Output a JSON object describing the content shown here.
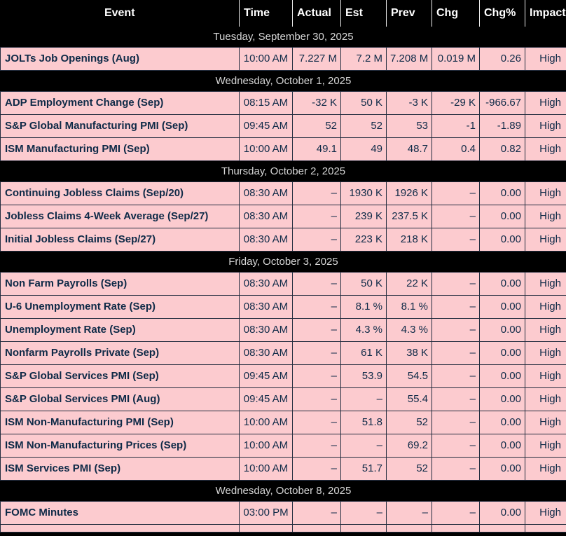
{
  "colors": {
    "header_background": "#000000",
    "header_text": "#ffffff",
    "header_divider": "#ededed",
    "date_row_background": "#000000",
    "date_row_text": "#d6d6d6",
    "row_background": "#fccbcf",
    "row_text": "#0e2a47",
    "row_border": "#232d3f"
  },
  "table": {
    "columns": [
      {
        "key": "event",
        "label": "Event"
      },
      {
        "key": "time",
        "label": "Time"
      },
      {
        "key": "actual",
        "label": "Actual"
      },
      {
        "key": "est",
        "label": "Est"
      },
      {
        "key": "prev",
        "label": "Prev"
      },
      {
        "key": "chg",
        "label": "Chg"
      },
      {
        "key": "chgpct",
        "label": "Chg%"
      },
      {
        "key": "impact",
        "label": "Impact"
      }
    ],
    "sections": [
      {
        "date": "Tuesday, September 30, 2025",
        "rows": [
          {
            "event": "JOLTs Job Openings (Aug)",
            "time": "10:00 AM",
            "actual": "7.227 M",
            "est": "7.2 M",
            "prev": "7.208 M",
            "chg": "0.019 M",
            "chgpct": "0.26",
            "impact": "High"
          }
        ]
      },
      {
        "date": "Wednesday, October 1, 2025",
        "rows": [
          {
            "event": "ADP Employment Change (Sep)",
            "time": "08:15 AM",
            "actual": "-32 K",
            "est": "50 K",
            "prev": "-3 K",
            "chg": "-29 K",
            "chgpct": "-966.67",
            "impact": "High"
          },
          {
            "event": "S&P Global Manufacturing PMI (Sep)",
            "time": "09:45 AM",
            "actual": "52",
            "est": "52",
            "prev": "53",
            "chg": "-1",
            "chgpct": "-1.89",
            "impact": "High"
          },
          {
            "event": "ISM Manufacturing PMI (Sep)",
            "time": "10:00 AM",
            "actual": "49.1",
            "est": "49",
            "prev": "48.7",
            "chg": "0.4",
            "chgpct": "0.82",
            "impact": "High"
          }
        ]
      },
      {
        "date": "Thursday, October 2, 2025",
        "rows": [
          {
            "event": "Continuing Jobless Claims (Sep/20)",
            "time": "08:30 AM",
            "actual": "–",
            "est": "1930 K",
            "prev": "1926 K",
            "chg": "–",
            "chgpct": "0.00",
            "impact": "High"
          },
          {
            "event": "Jobless Claims 4-Week Average (Sep/27)",
            "time": "08:30 AM",
            "actual": "–",
            "est": "239 K",
            "prev": "237.5 K",
            "chg": "–",
            "chgpct": "0.00",
            "impact": "High"
          },
          {
            "event": "Initial Jobless Claims (Sep/27)",
            "time": "08:30 AM",
            "actual": "–",
            "est": "223 K",
            "prev": "218 K",
            "chg": "–",
            "chgpct": "0.00",
            "impact": "High"
          }
        ]
      },
      {
        "date": "Friday, October 3, 2025",
        "rows": [
          {
            "event": "Non Farm Payrolls (Sep)",
            "time": "08:30 AM",
            "actual": "–",
            "est": "50 K",
            "prev": "22 K",
            "chg": "–",
            "chgpct": "0.00",
            "impact": "High"
          },
          {
            "event": "U-6 Unemployment Rate (Sep)",
            "time": "08:30 AM",
            "actual": "–",
            "est": "8.1 %",
            "prev": "8.1 %",
            "chg": "–",
            "chgpct": "0.00",
            "impact": "High"
          },
          {
            "event": "Unemployment Rate (Sep)",
            "time": "08:30 AM",
            "actual": "–",
            "est": "4.3 %",
            "prev": "4.3 %",
            "chg": "–",
            "chgpct": "0.00",
            "impact": "High"
          },
          {
            "event": "Nonfarm Payrolls Private (Sep)",
            "time": "08:30 AM",
            "actual": "–",
            "est": "61 K",
            "prev": "38 K",
            "chg": "–",
            "chgpct": "0.00",
            "impact": "High"
          },
          {
            "event": "S&P Global Services PMI (Sep)",
            "time": "09:45 AM",
            "actual": "–",
            "est": "53.9",
            "prev": "54.5",
            "chg": "–",
            "chgpct": "0.00",
            "impact": "High"
          },
          {
            "event": "S&P Global Services PMI (Aug)",
            "time": "09:45 AM",
            "actual": "–",
            "est": "–",
            "prev": "55.4",
            "chg": "–",
            "chgpct": "0.00",
            "impact": "High"
          },
          {
            "event": "ISM Non-Manufacturing PMI (Sep)",
            "time": "10:00 AM",
            "actual": "–",
            "est": "51.8",
            "prev": "52",
            "chg": "–",
            "chgpct": "0.00",
            "impact": "High"
          },
          {
            "event": "ISM Non-Manufacturing Prices (Sep)",
            "time": "10:00 AM",
            "actual": "–",
            "est": "–",
            "prev": "69.2",
            "chg": "–",
            "chgpct": "0.00",
            "impact": "High"
          },
          {
            "event": "ISM Services PMI (Sep)",
            "time": "10:00 AM",
            "actual": "–",
            "est": "51.7",
            "prev": "52",
            "chg": "–",
            "chgpct": "0.00",
            "impact": "High"
          }
        ]
      },
      {
        "date": "Wednesday, October 8, 2025",
        "rows": [
          {
            "event": "FOMC Minutes",
            "time": "03:00 PM",
            "actual": "–",
            "est": "–",
            "prev": "–",
            "chg": "–",
            "chgpct": "0.00",
            "impact": "High"
          }
        ]
      }
    ]
  }
}
